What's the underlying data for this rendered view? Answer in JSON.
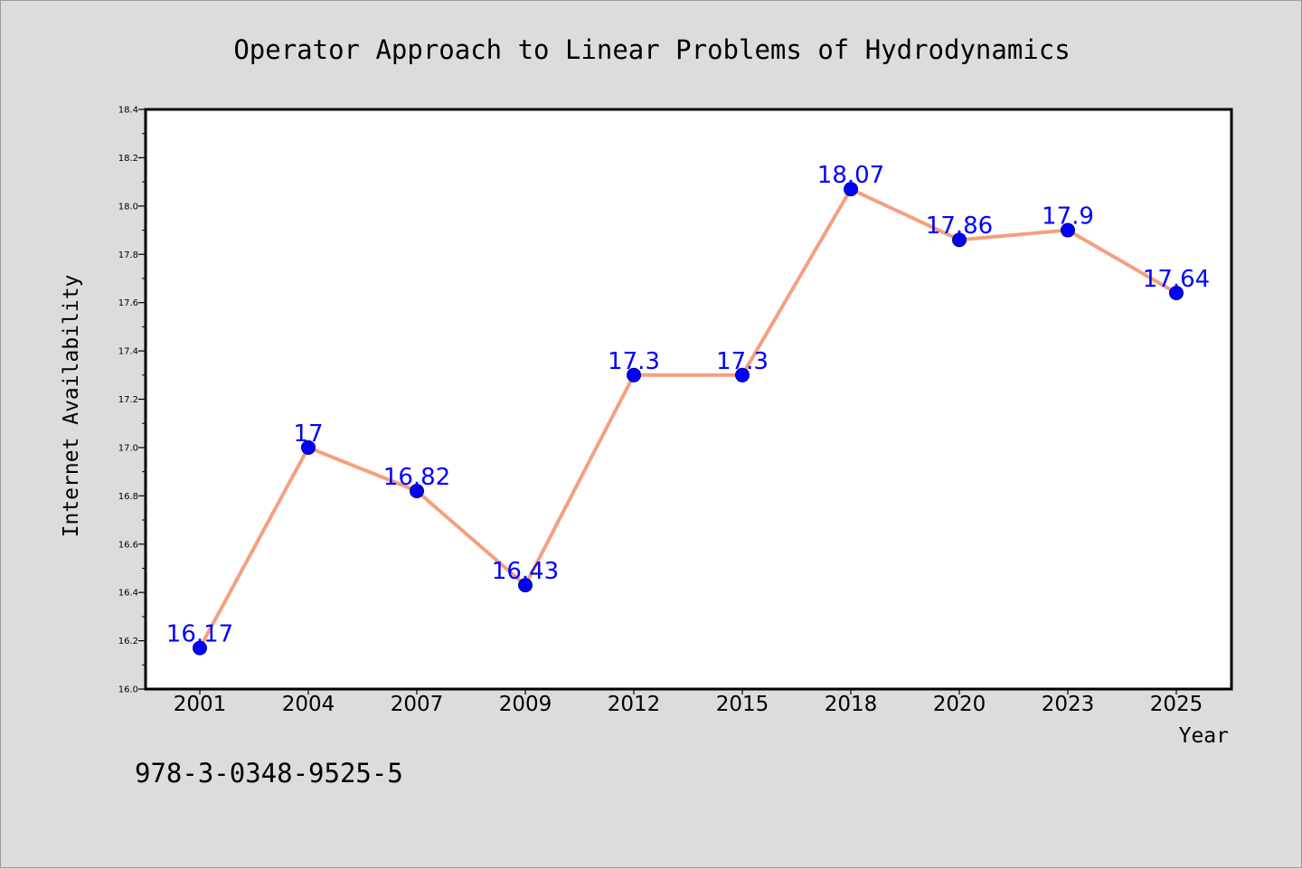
{
  "chart_data": {
    "type": "line",
    "title": "Operator Approach to Linear Problems of Hydrodynamics",
    "xlabel": "Year",
    "ylabel": "Internet Availability",
    "categories": [
      "2001",
      "2004",
      "2007",
      "2009",
      "2012",
      "2015",
      "2018",
      "2020",
      "2023",
      "2025"
    ],
    "series": [
      {
        "values": [
          16.17,
          17,
          16.82,
          16.43,
          17.3,
          17.3,
          18.07,
          17.86,
          17.9,
          17.64
        ],
        "data_labels": [
          "16.17",
          "17",
          "16.82",
          "16.43",
          "17.3",
          "17.3",
          "18.07",
          "17.86",
          "17.9",
          "17.64"
        ]
      }
    ],
    "ylim": [
      16.0,
      18.4
    ],
    "yticks": [
      "16.0",
      "16.2",
      "16.4",
      "16.6",
      "16.8",
      "17.0",
      "17.2",
      "17.4",
      "17.6",
      "17.8",
      "18.0",
      "18.2",
      "18.4"
    ],
    "grid": false,
    "legend": "none",
    "colors": {
      "line": "#f4a07e",
      "marker": "#0000ff",
      "data_label": "#0000ff",
      "plot_background": "#ffffff",
      "figure_background": "#dcdcdc"
    }
  },
  "footer": {
    "isbn": "978-3-0348-9525-5"
  }
}
